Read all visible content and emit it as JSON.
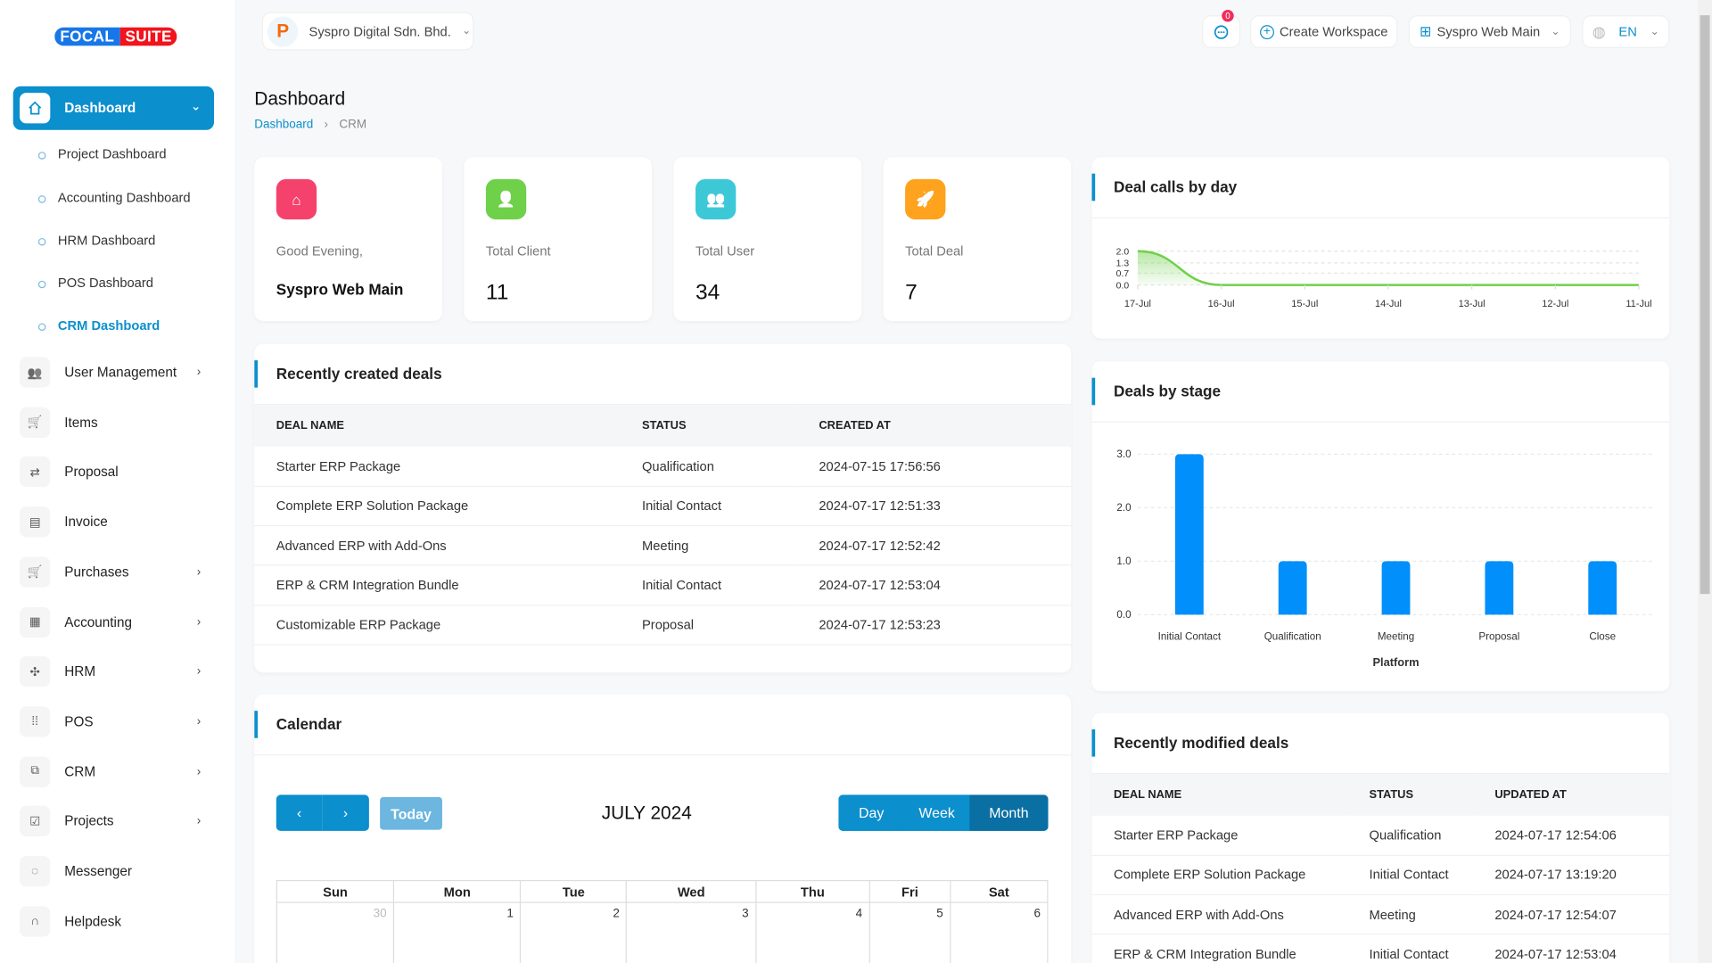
{
  "brand": {
    "logo_left": "FOCAL",
    "logo_right": "SUITE"
  },
  "header": {
    "company": "Syspro Digital Sdn. Bhd.",
    "notification_count": "0",
    "create_workspace": "Create Workspace",
    "workspace": "Syspro Web Main",
    "language": "EN"
  },
  "sidebar": {
    "active": "Dashboard",
    "sub_items": [
      "Project Dashboard",
      "Accounting Dashboard",
      "HRM Dashboard",
      "POS Dashboard",
      "CRM Dashboard"
    ],
    "items": [
      {
        "label": "User Management",
        "icon": "users-icon",
        "chevron": true
      },
      {
        "label": "Items",
        "icon": "cart-icon",
        "chevron": false
      },
      {
        "label": "Proposal",
        "icon": "proposal-icon",
        "chevron": false
      },
      {
        "label": "Invoice",
        "icon": "file-icon",
        "chevron": false
      },
      {
        "label": "Purchases",
        "icon": "cart-icon",
        "chevron": true
      },
      {
        "label": "Accounting",
        "icon": "grid-icon",
        "chevron": true
      },
      {
        "label": "HRM",
        "icon": "hrm-icon",
        "chevron": true
      },
      {
        "label": "POS",
        "icon": "dots-grid-icon",
        "chevron": true
      },
      {
        "label": "CRM",
        "icon": "crm-icon",
        "chevron": true
      },
      {
        "label": "Projects",
        "icon": "check-square-icon",
        "chevron": true
      },
      {
        "label": "Messenger",
        "icon": "chat-icon",
        "chevron": false
      },
      {
        "label": "Helpdesk",
        "icon": "headset-icon",
        "chevron": false
      }
    ]
  },
  "page": {
    "title": "Dashboard",
    "breadcrumb": [
      "Dashboard",
      "CRM"
    ]
  },
  "stats": [
    {
      "label": "Good Evening,",
      "value": "Syspro Web Main",
      "color": "#f5426c"
    },
    {
      "label": "Total Client",
      "value": "11",
      "color": "#6fd04a"
    },
    {
      "label": "Total User",
      "value": "34",
      "color": "#3dc8d8"
    },
    {
      "label": "Total Deal",
      "value": "7",
      "color": "#ffa21d"
    }
  ],
  "recent_deals": {
    "title": "Recently created deals",
    "headers": [
      "DEAL NAME",
      "STATUS",
      "CREATED AT"
    ],
    "rows": [
      [
        "Starter ERP Package",
        "Qualification",
        "2024-07-15 17:56:56"
      ],
      [
        "Complete ERP Solution Package",
        "Initial Contact",
        "2024-07-17 12:51:33"
      ],
      [
        "Advanced ERP with Add-Ons",
        "Meeting",
        "2024-07-17 12:52:42"
      ],
      [
        "ERP & CRM Integration Bundle",
        "Initial Contact",
        "2024-07-17 12:53:04"
      ],
      [
        "Customizable ERP Package",
        "Proposal",
        "2024-07-17 12:53:23"
      ]
    ]
  },
  "calendar": {
    "title": "Calendar",
    "today": "Today",
    "month": "JULY 2024",
    "views": [
      "Day",
      "Week",
      "Month"
    ],
    "active_view": "Month",
    "weekdays": [
      "Sun",
      "Mon",
      "Tue",
      "Wed",
      "Thu",
      "Fri",
      "Sat"
    ],
    "first_week": [
      "30",
      "1",
      "2",
      "3",
      "4",
      "5",
      "6"
    ]
  },
  "modified_deals": {
    "title": "Recently modified deals",
    "headers": [
      "DEAL NAME",
      "STATUS",
      "UPDATED AT"
    ],
    "rows": [
      [
        "Starter ERP Package",
        "Qualification",
        "2024-07-17 12:54:06"
      ],
      [
        "Complete ERP Solution Package",
        "Initial Contact",
        "2024-07-17 13:19:20"
      ],
      [
        "Advanced ERP with Add-Ons",
        "Meeting",
        "2024-07-17 12:54:07"
      ],
      [
        "ERP & CRM Integration Bundle",
        "Initial Contact",
        "2024-07-17 12:53:04"
      ]
    ]
  },
  "chart_data": [
    {
      "type": "area",
      "title": "Deal calls by day",
      "x": [
        "17-Jul",
        "16-Jul",
        "15-Jul",
        "14-Jul",
        "13-Jul",
        "12-Jul",
        "11-Jul"
      ],
      "values": [
        2,
        0,
        0,
        0,
        0,
        0,
        0
      ],
      "yticks": [
        "2.0",
        "1.3",
        "0.7",
        "0.0"
      ],
      "ylim": [
        0,
        2
      ],
      "color": "#6fd04a",
      "grid": true
    },
    {
      "type": "bar",
      "title": "Deals by stage",
      "categories": [
        "Initial Contact",
        "Qualification",
        "Meeting",
        "Proposal",
        "Close"
      ],
      "values": [
        3,
        1,
        1,
        1,
        1
      ],
      "xlabel": "Platform",
      "yticks": [
        "0.0",
        "1.0",
        "2.0",
        "3.0"
      ],
      "ylim": [
        0,
        3
      ],
      "color": "#008ffb",
      "grid": true
    }
  ]
}
